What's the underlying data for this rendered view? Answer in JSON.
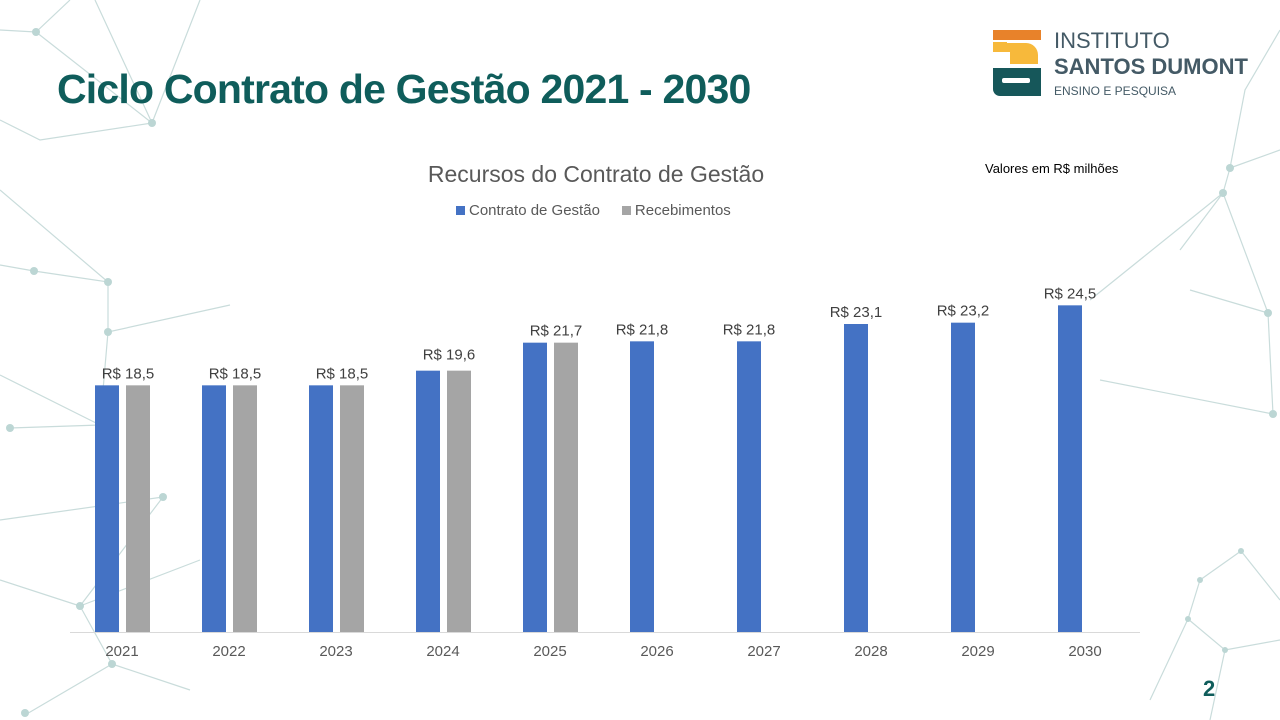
{
  "slide": {
    "title": "Ciclo Contrato de Gestão 2021 - 2030",
    "page_number": "2",
    "units_note": "Valores em R$ milhões"
  },
  "logo": {
    "line1": "INSTITUTO",
    "line2": "SANTOS DUMONT",
    "line3": "ENSINO E PESQUISA"
  },
  "colors": {
    "contrato": "#4472c4",
    "recebimentos": "#a5a5a5",
    "title": "#0f5d5b"
  },
  "chart_data": {
    "type": "bar",
    "title": "Recursos do Contrato de Gestão",
    "categories": [
      "2021",
      "2022",
      "2023",
      "2024",
      "2025",
      "2026",
      "2027",
      "2028",
      "2029",
      "2030"
    ],
    "series": [
      {
        "name": "Contrato de Gestão",
        "values": [
          18.5,
          18.5,
          18.5,
          19.6,
          21.7,
          21.8,
          21.8,
          23.1,
          23.2,
          24.5
        ]
      },
      {
        "name": "Recebimentos",
        "values": [
          18.5,
          18.5,
          18.5,
          19.6,
          21.7,
          null,
          null,
          null,
          null,
          null
        ]
      }
    ],
    "data_labels": [
      "R$ 18,5",
      "R$ 18,5",
      "R$ 18,5",
      "R$ 19,6",
      "R$ 21,7",
      "R$ 21,8",
      "R$ 21,8",
      "R$ 23,1",
      "R$ 23,2",
      "R$ 24,5"
    ],
    "xlabel": "",
    "ylabel": "",
    "ylim": [
      0,
      30
    ],
    "grid": false,
    "legend": "top"
  }
}
